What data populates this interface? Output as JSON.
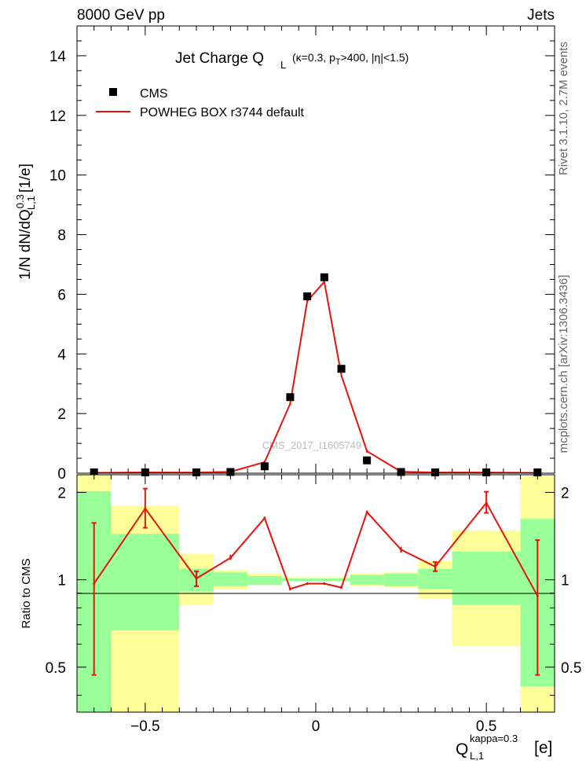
{
  "header": {
    "left": "8000 GeV pp",
    "right": "Jets"
  },
  "side_labels": {
    "rivet": "Rivet 3.1.10,  2.7M events",
    "mcplots": "mcplots.cern.ch [arXiv:1306.3436]"
  },
  "colors": {
    "data": "#000000",
    "mc": "#e8140c",
    "band_inner": "#99ff99",
    "band_outer": "#ffff99"
  },
  "chart_data": [
    {
      "type": "scatter",
      "title_main": "Jet Charge Q",
      "title_sub": "L",
      "title_paren": "(κ=0.3, p",
      "title_pt_sub": "T",
      "title_rest": ">400, |η|<1.5)",
      "ylabel": "1/N dN/dQ",
      "ylabel_sup": "0.3",
      "ylabel_sub": "L,1",
      "ylabel_unit": "[1/e]",
      "ylim": [
        0,
        15
      ],
      "yticks": [
        "0",
        "2",
        "4",
        "6",
        "8",
        "10",
        "12",
        "14"
      ],
      "watermark": "CMS_2017_I1605749",
      "legend": [
        {
          "label": "CMS",
          "marker": "square"
        },
        {
          "label": "POWHEG BOX r3744 default",
          "marker": "line"
        }
      ],
      "series": [
        {
          "name": "CMS",
          "x": [
            -0.65,
            -0.5,
            -0.35,
            -0.25,
            -0.15,
            -0.075,
            -0.025,
            0.025,
            0.075,
            0.15,
            0.25,
            0.35,
            0.5,
            0.65
          ],
          "y": [
            0.01,
            0.015,
            0.02,
            0.04,
            0.23,
            2.55,
            5.93,
            6.57,
            3.5,
            0.43,
            0.04,
            0.02,
            0.012,
            0.01
          ]
        },
        {
          "name": "POWHEG BOX r3744 default",
          "x": [
            -0.65,
            -0.5,
            -0.35,
            -0.25,
            -0.15,
            -0.075,
            -0.025,
            0.025,
            0.075,
            0.15,
            0.25,
            0.35,
            0.5,
            0.65
          ],
          "y": [
            0.01,
            0.027,
            0.02,
            0.047,
            0.37,
            2.33,
            5.77,
            6.42,
            3.28,
            0.74,
            0.05,
            0.023,
            0.022,
            0.009
          ]
        }
      ]
    },
    {
      "type": "line",
      "ylabel": "Ratio to CMS",
      "xlabel": "Q",
      "xlabel_sup": "kappa=0.3",
      "xlabel_sub": "L,1",
      "xlabel_unit": "[e]",
      "xlim": [
        -0.7,
        0.7
      ],
      "ylim": [
        0.35,
        2.3
      ],
      "xticks": [
        -0.5,
        0,
        0.5
      ],
      "xtick_labels": [
        "−0.5",
        "0",
        "0.5"
      ],
      "yticks": [
        0.5,
        1,
        2
      ],
      "ytick_labels": [
        "0.5",
        "1",
        "2"
      ],
      "bins": [
        {
          "lo": -0.7,
          "hi": -0.6,
          "inner": [
            0.3,
            2.02
          ],
          "outer": [
            0.3,
            2.3
          ]
        },
        {
          "lo": -0.6,
          "hi": -0.4,
          "inner": [
            0.67,
            1.44
          ],
          "outer": [
            0.3,
            1.8
          ]
        },
        {
          "lo": -0.4,
          "hi": -0.3,
          "inner": [
            0.91,
            1.09
          ],
          "outer": [
            0.82,
            1.23
          ]
        },
        {
          "lo": -0.3,
          "hi": -0.2,
          "inner": [
            0.95,
            1.06
          ],
          "outer": [
            0.93,
            1.08
          ]
        },
        {
          "lo": -0.2,
          "hi": -0.1,
          "inner": [
            0.96,
            1.03
          ],
          "outer": [
            0.96,
            1.05
          ]
        },
        {
          "lo": -0.1,
          "hi": 0.0,
          "inner": [
            0.99,
            1.01
          ],
          "outer": [
            0.985,
            1.02
          ]
        },
        {
          "lo": 0.0,
          "hi": 0.1,
          "inner": [
            0.99,
            1.01
          ],
          "outer": [
            0.985,
            1.02
          ]
        },
        {
          "lo": 0.1,
          "hi": 0.2,
          "inner": [
            0.96,
            1.04
          ],
          "outer": [
            0.95,
            1.05
          ]
        },
        {
          "lo": 0.2,
          "hi": 0.3,
          "inner": [
            0.95,
            1.05
          ],
          "outer": [
            0.94,
            1.06
          ]
        },
        {
          "lo": 0.3,
          "hi": 0.4,
          "inner": [
            0.93,
            1.09
          ],
          "outer": [
            0.86,
            1.16
          ]
        },
        {
          "lo": 0.4,
          "hi": 0.6,
          "inner": [
            0.82,
            1.25
          ],
          "outer": [
            0.59,
            1.48
          ]
        },
        {
          "lo": 0.6,
          "hi": 0.7,
          "inner": [
            0.43,
            1.62
          ],
          "outer": [
            0.3,
            2.27
          ]
        }
      ],
      "series": [
        {
          "name": "POWHEG BOX r3744 default",
          "x": [
            -0.65,
            -0.5,
            -0.35,
            -0.25,
            -0.15,
            -0.075,
            -0.025,
            0.025,
            0.075,
            0.15,
            0.25,
            0.35,
            0.5,
            0.65
          ],
          "y": [
            0.97,
            1.76,
            1.01,
            1.19,
            1.63,
            0.93,
            0.97,
            0.97,
            0.94,
            1.71,
            1.27,
            1.11,
            1.84,
            0.88
          ],
          "err_lo": [
            0.5,
            0.25,
            0.06,
            0.02,
            0.02,
            0.01,
            0.01,
            0.01,
            0.01,
            0.02,
            0.03,
            0.04,
            0.14,
            0.41
          ],
          "err_hi": [
            0.6,
            0.3,
            0.06,
            0.03,
            0.02,
            0.01,
            0.01,
            0.01,
            0.01,
            0.02,
            0.03,
            0.04,
            0.17,
            0.49
          ]
        }
      ]
    }
  ]
}
